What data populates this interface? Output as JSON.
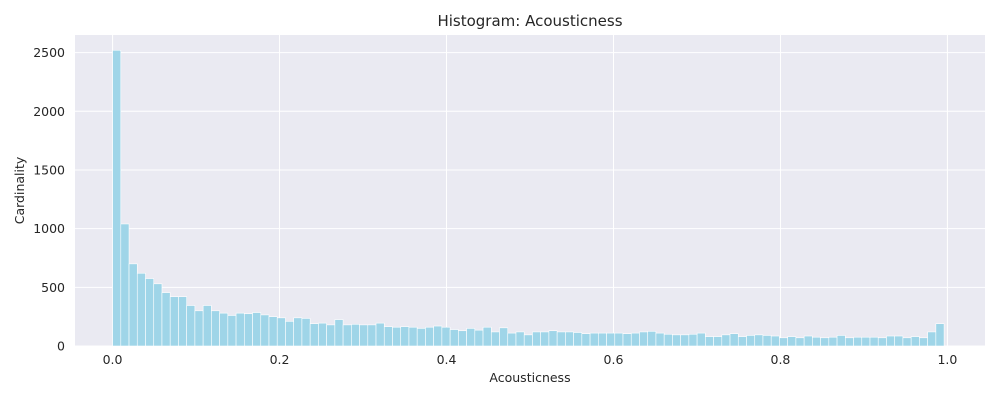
{
  "chart_data": {
    "type": "bar",
    "title": "Histogram: Acousticness",
    "xlabel": "Acousticness",
    "ylabel": "Cardinality",
    "xlim": [
      -0.045,
      1.045
    ],
    "ylim": [
      0,
      2650
    ],
    "xticks": [
      0.0,
      0.2,
      0.4,
      0.6,
      0.8,
      1.0
    ],
    "xtick_labels": [
      "0.0",
      "0.2",
      "0.4",
      "0.6",
      "0.8",
      "1.0"
    ],
    "yticks": [
      0,
      500,
      1000,
      1500,
      2000,
      2500
    ],
    "ytick_labels": [
      "0",
      "500",
      "1000",
      "1500",
      "2000",
      "2500"
    ],
    "grid": true,
    "bin_start": 0.0,
    "bin_end": 0.996,
    "bar_color": "#9fd5e8",
    "bar_edge_color": "#ffffff",
    "plot_background": "#eaeaf2",
    "grid_color": "#ffffff",
    "values": [
      2520,
      1040,
      700,
      620,
      575,
      530,
      455,
      420,
      420,
      345,
      300,
      345,
      300,
      280,
      260,
      280,
      275,
      285,
      265,
      250,
      240,
      210,
      240,
      235,
      190,
      195,
      180,
      225,
      180,
      185,
      180,
      180,
      195,
      165,
      160,
      165,
      160,
      150,
      160,
      170,
      160,
      140,
      130,
      150,
      135,
      160,
      120,
      155,
      110,
      120,
      95,
      120,
      120,
      130,
      120,
      120,
      115,
      105,
      110,
      110,
      110,
      110,
      105,
      110,
      120,
      125,
      110,
      100,
      95,
      95,
      100,
      110,
      80,
      80,
      95,
      105,
      80,
      90,
      95,
      90,
      85,
      70,
      80,
      70,
      85,
      75,
      70,
      75,
      90,
      70,
      75,
      75,
      75,
      70,
      85,
      85,
      70,
      80,
      70,
      120,
      190
    ]
  }
}
